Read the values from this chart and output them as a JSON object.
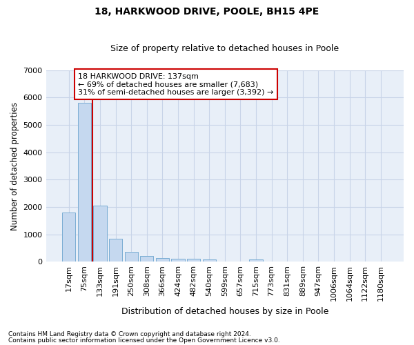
{
  "title": "18, HARKWOOD DRIVE, POOLE, BH15 4PE",
  "subtitle": "Size of property relative to detached houses in Poole",
  "xlabel": "Distribution of detached houses by size in Poole",
  "ylabel": "Number of detached properties",
  "categories": [
    "17sqm",
    "75sqm",
    "133sqm",
    "191sqm",
    "250sqm",
    "308sqm",
    "366sqm",
    "424sqm",
    "482sqm",
    "540sqm",
    "599sqm",
    "657sqm",
    "715sqm",
    "773sqm",
    "831sqm",
    "889sqm",
    "947sqm",
    "1006sqm",
    "1064sqm",
    "1122sqm",
    "1180sqm"
  ],
  "values": [
    1800,
    5800,
    2060,
    840,
    370,
    220,
    130,
    110,
    100,
    85,
    0,
    0,
    75,
    0,
    0,
    0,
    0,
    0,
    0,
    0,
    0
  ],
  "bar_color": "#c5d8ef",
  "bar_edge_color": "#7aadd4",
  "highlight_color": "#cc0000",
  "annotation_line1": "18 HARKWOOD DRIVE: 137sqm",
  "annotation_line2": "← 69% of detached houses are smaller (7,683)",
  "annotation_line3": "31% of semi-detached houses are larger (3,392) →",
  "ylim": [
    0,
    7000
  ],
  "yticks": [
    0,
    1000,
    2000,
    3000,
    4000,
    5000,
    6000,
    7000
  ],
  "grid_color": "#c8d4e8",
  "background_color": "#e8eff8",
  "footnote1": "Contains HM Land Registry data © Crown copyright and database right 2024.",
  "footnote2": "Contains public sector information licensed under the Open Government Licence v3.0."
}
